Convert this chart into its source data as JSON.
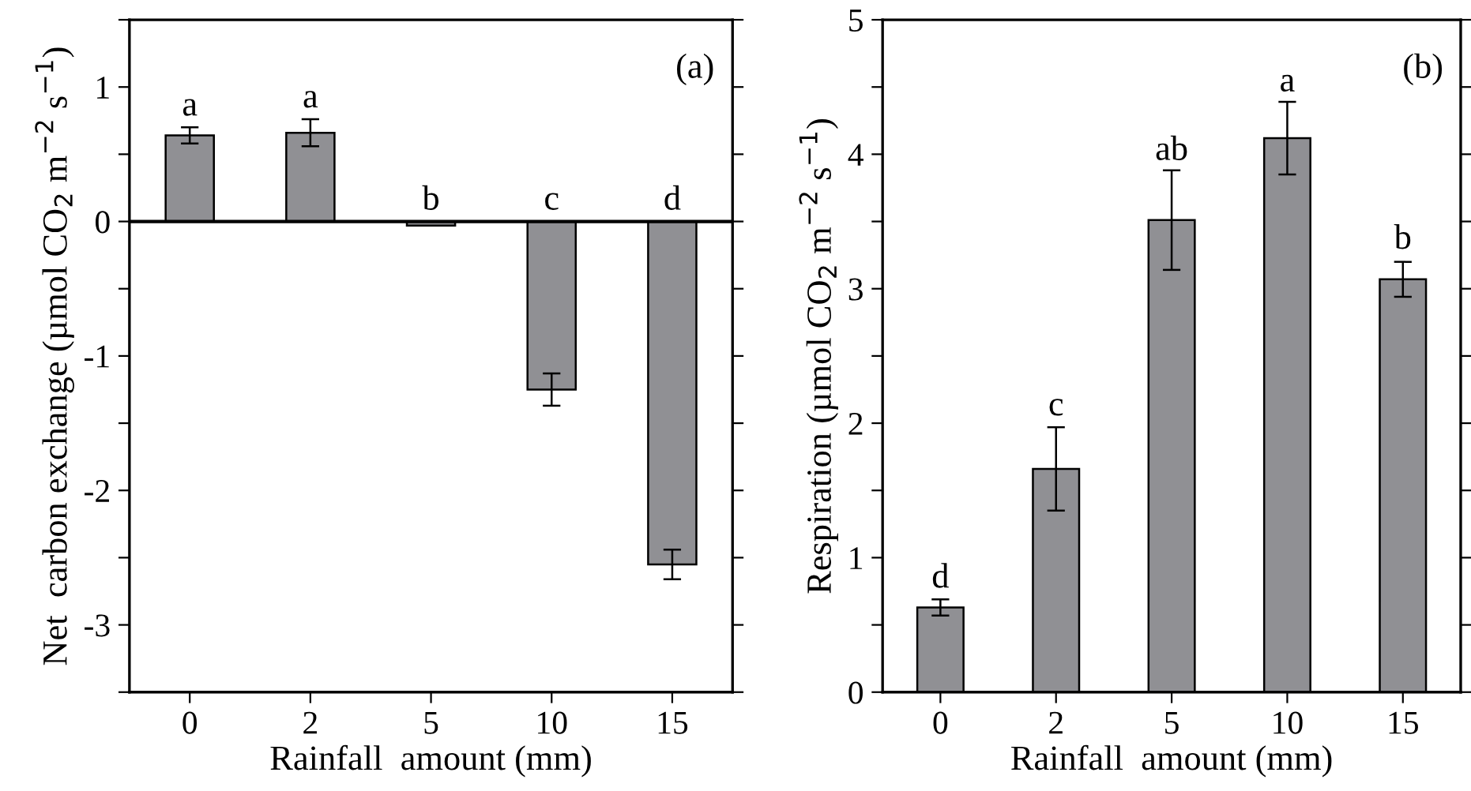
{
  "chart_data": [
    {
      "type": "bar",
      "xlabel": "Rainfall  amount (mm)",
      "ylabel": "Net  carbon exchange (µmol CO$_{2}$ m$^{−2}$ s$^{−1}$)",
      "categories": [
        "0",
        "2",
        "5",
        "10",
        "15"
      ],
      "values": [
        0.64,
        0.66,
        -0.03,
        -1.25,
        -2.55
      ],
      "errors": [
        0.06,
        0.1,
        null,
        0.12,
        0.11
      ],
      "color": "#909094",
      "ylim": [
        -3.5,
        1.5
      ],
      "yticks": [
        {
          "value": -3.5,
          "label": null
        },
        -3,
        {
          "value": -2.5,
          "label": null
        },
        -2,
        {
          "value": -1.5,
          "label": null
        },
        -1,
        {
          "value": -0.5,
          "label": null
        },
        0,
        {
          "value": 0.5,
          "label": null
        },
        1,
        {
          "value": 1.5,
          "label": null
        }
      ],
      "ref_lines": [
        {
          "axis": "y",
          "value": 0,
          "label": null,
          "color": "#000000"
        }
      ],
      "annotations": [
        "(a)",
        {
          "text": "a",
          "x": "0",
          "y": 0.7
        },
        {
          "text": "a",
          "x": "2",
          "y": 0.76
        },
        {
          "text": "b",
          "x": "5",
          "y": 0.0
        },
        {
          "text": "c",
          "x": "10",
          "y": 0.0
        },
        {
          "text": "d",
          "x": "15",
          "y": 0.0
        }
      ]
    },
    {
      "type": "bar",
      "xlabel": "Rainfall  amount (mm)",
      "ylabel": "Respiration (µmol CO$_{2}$ m$^{−2}$ s$^{−1}$)",
      "categories": [
        "0",
        "2",
        "5",
        "10",
        "15"
      ],
      "values": [
        0.63,
        1.66,
        3.51,
        4.12,
        3.07
      ],
      "errors": [
        0.06,
        0.31,
        0.37,
        0.27,
        0.13
      ],
      "color": "#909094",
      "ylim": [
        0,
        5
      ],
      "yticks": [
        0,
        {
          "value": 0.5,
          "label": null
        },
        1,
        {
          "value": 1.5,
          "label": null
        },
        2,
        {
          "value": 2.5,
          "label": null
        },
        3,
        {
          "value": 3.5,
          "label": null
        },
        4,
        {
          "value": 4.5,
          "label": null
        },
        5
      ],
      "annotations": [
        "(b)",
        {
          "text": "d",
          "x": "0",
          "y": 0.69
        },
        {
          "text": "c",
          "x": "2",
          "y": 1.97
        },
        {
          "text": "ab",
          "x": "5",
          "y": 3.87
        },
        {
          "text": "a",
          "x": "10",
          "y": 4.38
        },
        {
          "text": "b",
          "x": "15",
          "y": 3.21
        }
      ]
    }
  ]
}
